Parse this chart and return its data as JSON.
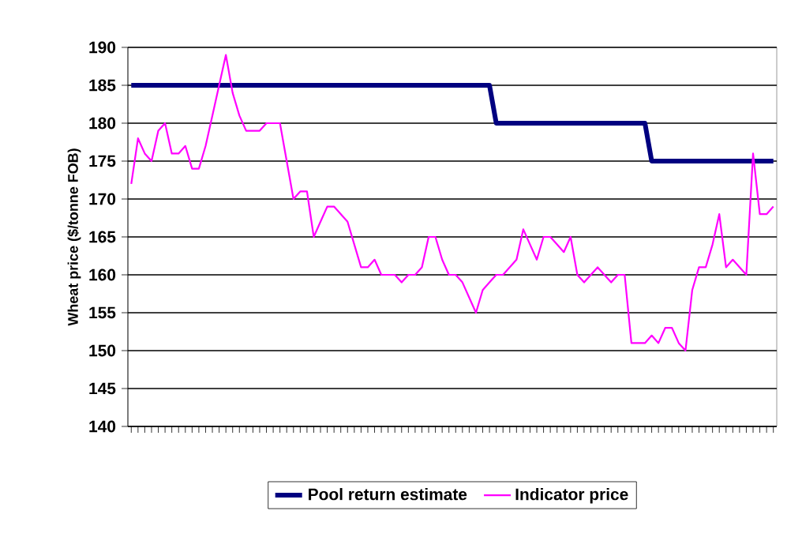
{
  "chart_data": {
    "type": "line",
    "ylabel": "Wheat price ($/tonne FOB)",
    "categories": [
      null,
      null,
      null,
      null,
      null,
      null,
      null,
      null,
      null,
      null,
      null,
      null,
      null,
      null,
      null,
      null,
      null,
      null,
      null,
      null,
      null,
      null,
      null,
      null,
      null,
      null,
      null,
      null,
      null,
      null,
      null,
      null,
      null,
      null,
      null,
      null,
      null,
      null,
      null,
      null,
      null,
      null,
      null,
      null,
      null,
      null,
      null,
      null,
      null,
      null,
      null,
      null,
      null,
      null,
      null,
      null,
      null,
      null,
      null,
      null,
      null,
      null,
      null,
      null,
      null,
      null,
      null,
      null,
      null,
      null,
      null,
      null,
      null,
      null,
      null,
      null,
      null,
      null,
      null,
      null,
      null,
      null,
      null,
      null,
      null,
      null,
      null,
      null,
      null,
      null,
      null,
      null,
      null,
      null,
      null,
      null
    ],
    "series": [
      {
        "name": "Pool return estimate",
        "color": "#000080",
        "values": [
          185,
          185,
          185,
          185,
          185,
          185,
          185,
          185,
          185,
          185,
          185,
          185,
          185,
          185,
          185,
          185,
          185,
          185,
          185,
          185,
          185,
          185,
          185,
          185,
          185,
          185,
          185,
          185,
          185,
          185,
          185,
          185,
          185,
          185,
          185,
          185,
          185,
          185,
          185,
          185,
          185,
          185,
          185,
          185,
          185,
          185,
          185,
          185,
          185,
          185,
          185,
          185,
          185,
          185,
          180,
          180,
          180,
          180,
          180,
          180,
          180,
          180,
          180,
          180,
          180,
          180,
          180,
          180,
          180,
          180,
          180,
          180,
          180,
          180,
          180,
          180,
          180,
          175,
          175,
          175,
          175,
          175,
          175,
          175,
          175,
          175,
          175,
          175,
          175,
          175,
          175,
          175,
          175,
          175,
          175,
          175
        ]
      },
      {
        "name": "Indicator price",
        "color": "#ff00ff",
        "values": [
          172,
          178,
          176,
          175,
          179,
          180,
          176,
          176,
          177,
          174,
          174,
          177,
          181,
          185,
          189,
          184,
          181,
          179,
          179,
          179,
          180,
          180,
          180,
          175,
          170,
          171,
          171,
          165,
          167,
          169,
          169,
          168,
          167,
          164,
          161,
          161,
          162,
          160,
          160,
          160,
          159,
          160,
          160,
          161,
          165,
          165,
          162,
          160,
          160,
          159,
          157,
          155,
          158,
          159,
          160,
          160,
          161,
          162,
          166,
          164,
          162,
          165,
          165,
          164,
          163,
          165,
          160,
          159,
          160,
          161,
          160,
          159,
          160,
          160,
          151,
          151,
          151,
          152,
          151,
          153,
          153,
          151,
          150,
          158,
          161,
          161,
          164,
          168,
          161,
          162,
          161,
          160,
          176,
          168,
          168,
          169
        ]
      }
    ],
    "ylim": [
      140,
      190
    ],
    "yticks": [
      140,
      145,
      150,
      155,
      160,
      165,
      170,
      175,
      180,
      185,
      190
    ],
    "grid": "y",
    "legend": "bottom",
    "tick_labels": "y",
    "marker": "none",
    "line_style": "solid"
  }
}
